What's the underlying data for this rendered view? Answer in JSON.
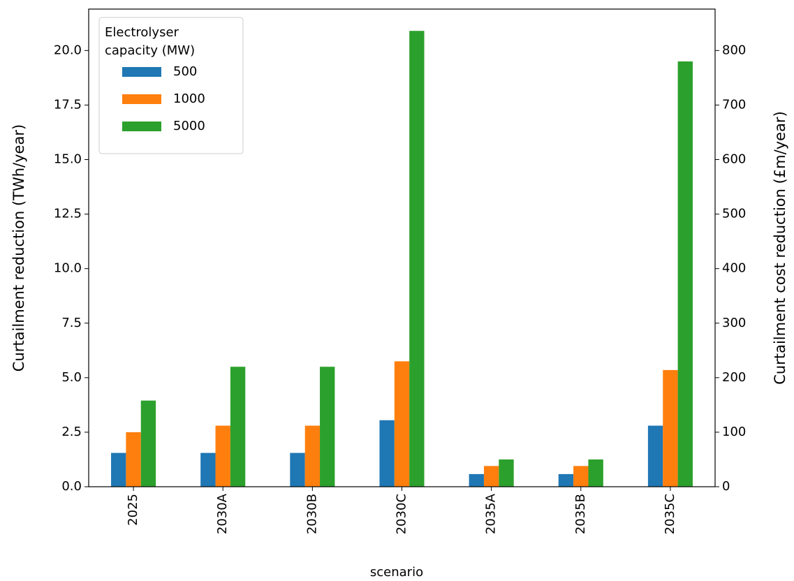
{
  "chart_data": {
    "type": "bar",
    "x_label": "scenario",
    "y_label": "Curtailment reduction (TWh/year)",
    "y2_label": "Curtailment cost reduction (£m/year)",
    "categories": [
      "2025",
      "2030A",
      "2030B",
      "2030C",
      "2035A",
      "2035B",
      "2035C"
    ],
    "series": [
      {
        "name": "500",
        "color": "#1f77b4",
        "values": [
          1.55,
          1.55,
          1.55,
          3.05,
          0.58,
          0.58,
          2.8
        ]
      },
      {
        "name": "1000",
        "color": "#ff7f0e",
        "values": [
          2.5,
          2.8,
          2.8,
          5.75,
          0.95,
          0.95,
          5.35
        ]
      },
      {
        "name": "5000",
        "color": "#2ca02c",
        "values": [
          3.95,
          5.5,
          5.5,
          20.9,
          1.25,
          1.25,
          19.5
        ]
      }
    ],
    "legend_title": "Electrolyser\ncapacity (MW)",
    "legend_position": "upper-left",
    "ylim": [
      0,
      21.9
    ],
    "yticks": [
      {
        "value": 0,
        "label": "0.0"
      },
      2.5,
      {
        "value": 5,
        "label": "5.0"
      },
      7.5,
      {
        "value": 10,
        "label": "10.0"
      },
      12.5,
      {
        "value": 15,
        "label": "15.0"
      },
      17.5,
      {
        "value": 20,
        "label": "20.0"
      }
    ],
    "y2lim": [
      0,
      876
    ],
    "y2ticks": [
      0,
      100,
      200,
      300,
      400,
      500,
      600,
      700,
      800
    ]
  }
}
